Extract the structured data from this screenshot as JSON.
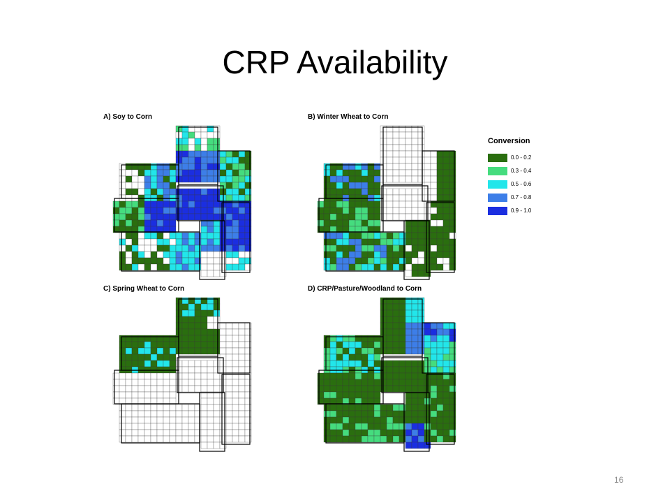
{
  "slide": {
    "title": "CRP Availability",
    "number": "16"
  },
  "legend": {
    "title": "Conversion",
    "items": [
      {
        "label": "0.0 - 0.2",
        "color": "#2a6e0f"
      },
      {
        "label": "0.3 - 0.4",
        "color": "#45dc7e"
      },
      {
        "label": "0.5 - 0.6",
        "color": "#22e6ea"
      },
      {
        "label": "0.7 - 0.8",
        "color": "#3d7ee8"
      },
      {
        "label": "0.9 - 1.0",
        "color": "#1b2ee0"
      }
    ]
  },
  "panels": [
    {
      "label": "A) Soy to Corn"
    },
    {
      "label": "B) Winter Wheat  to Corn"
    },
    {
      "label": "C) Spring Wheat  to Corn"
    },
    {
      "label": "D) CRP/Pasture/Woodland to Corn"
    }
  ]
}
